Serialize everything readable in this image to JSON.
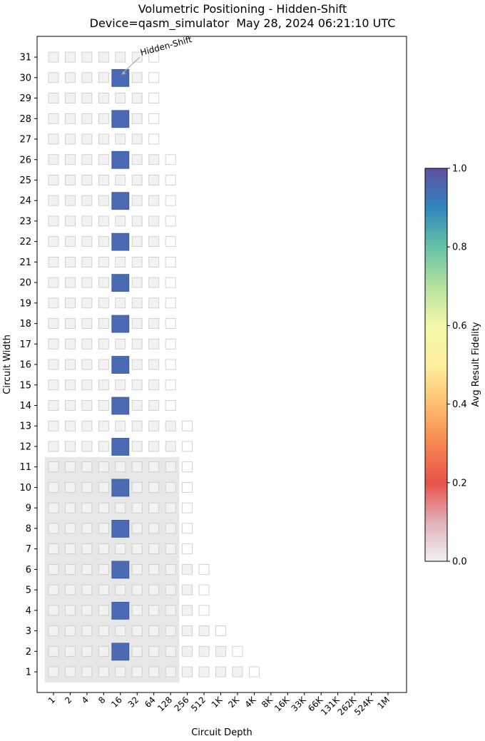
{
  "chart_data": {
    "type": "heatmap",
    "title": "Volumetric Positioning - Hidden-Shift",
    "subtitle": "Device=qasm_simulator  May 28, 2024 06:21:10 UTC",
    "xlabel": "Circuit Depth",
    "ylabel": "Circuit Width",
    "x_tick_labels": [
      "1",
      "2",
      "4",
      "8",
      "16",
      "32",
      "64",
      "128",
      "256",
      "512",
      "1K",
      "2K",
      "4K",
      "8K",
      "16K",
      "33K",
      "66K",
      "131K",
      "262K",
      "524K",
      "1M"
    ],
    "y_tick_labels": [
      "1",
      "2",
      "3",
      "4",
      "5",
      "6",
      "7",
      "8",
      "9",
      "10",
      "11",
      "12",
      "13",
      "14",
      "15",
      "16",
      "17",
      "18",
      "19",
      "20",
      "21",
      "22",
      "23",
      "24",
      "25",
      "26",
      "27",
      "28",
      "29",
      "30",
      "31"
    ],
    "annotation": "Hidden-Shift",
    "colorbar": {
      "label": "Avg Result Fidelity",
      "ticks": [
        "0.0",
        "0.2",
        "0.4",
        "0.6",
        "0.8",
        "1.0"
      ],
      "range": [
        0,
        1
      ]
    },
    "max_depth_index_by_width": [
      {
        "widths": [
          1,
          1
        ],
        "max_depth": "4K"
      },
      {
        "widths": [
          2,
          2
        ],
        "max_depth": "2K"
      },
      {
        "widths": [
          3,
          3
        ],
        "max_depth": "1K"
      },
      {
        "widths": [
          4,
          6
        ],
        "max_depth": "512"
      },
      {
        "widths": [
          7,
          13
        ],
        "max_depth": "256"
      },
      {
        "widths": [
          14,
          26
        ],
        "max_depth": "128"
      },
      {
        "widths": [
          27,
          31
        ],
        "max_depth": "64"
      }
    ],
    "hidden_shift_results": {
      "depth": "16",
      "widths": [
        2,
        4,
        6,
        8,
        10,
        12,
        14,
        16,
        18,
        20,
        22,
        24,
        26,
        28,
        30
      ],
      "avg_fidelity": 1.0
    },
    "shaded_region": {
      "max_width": 11,
      "max_depth": "128"
    }
  }
}
